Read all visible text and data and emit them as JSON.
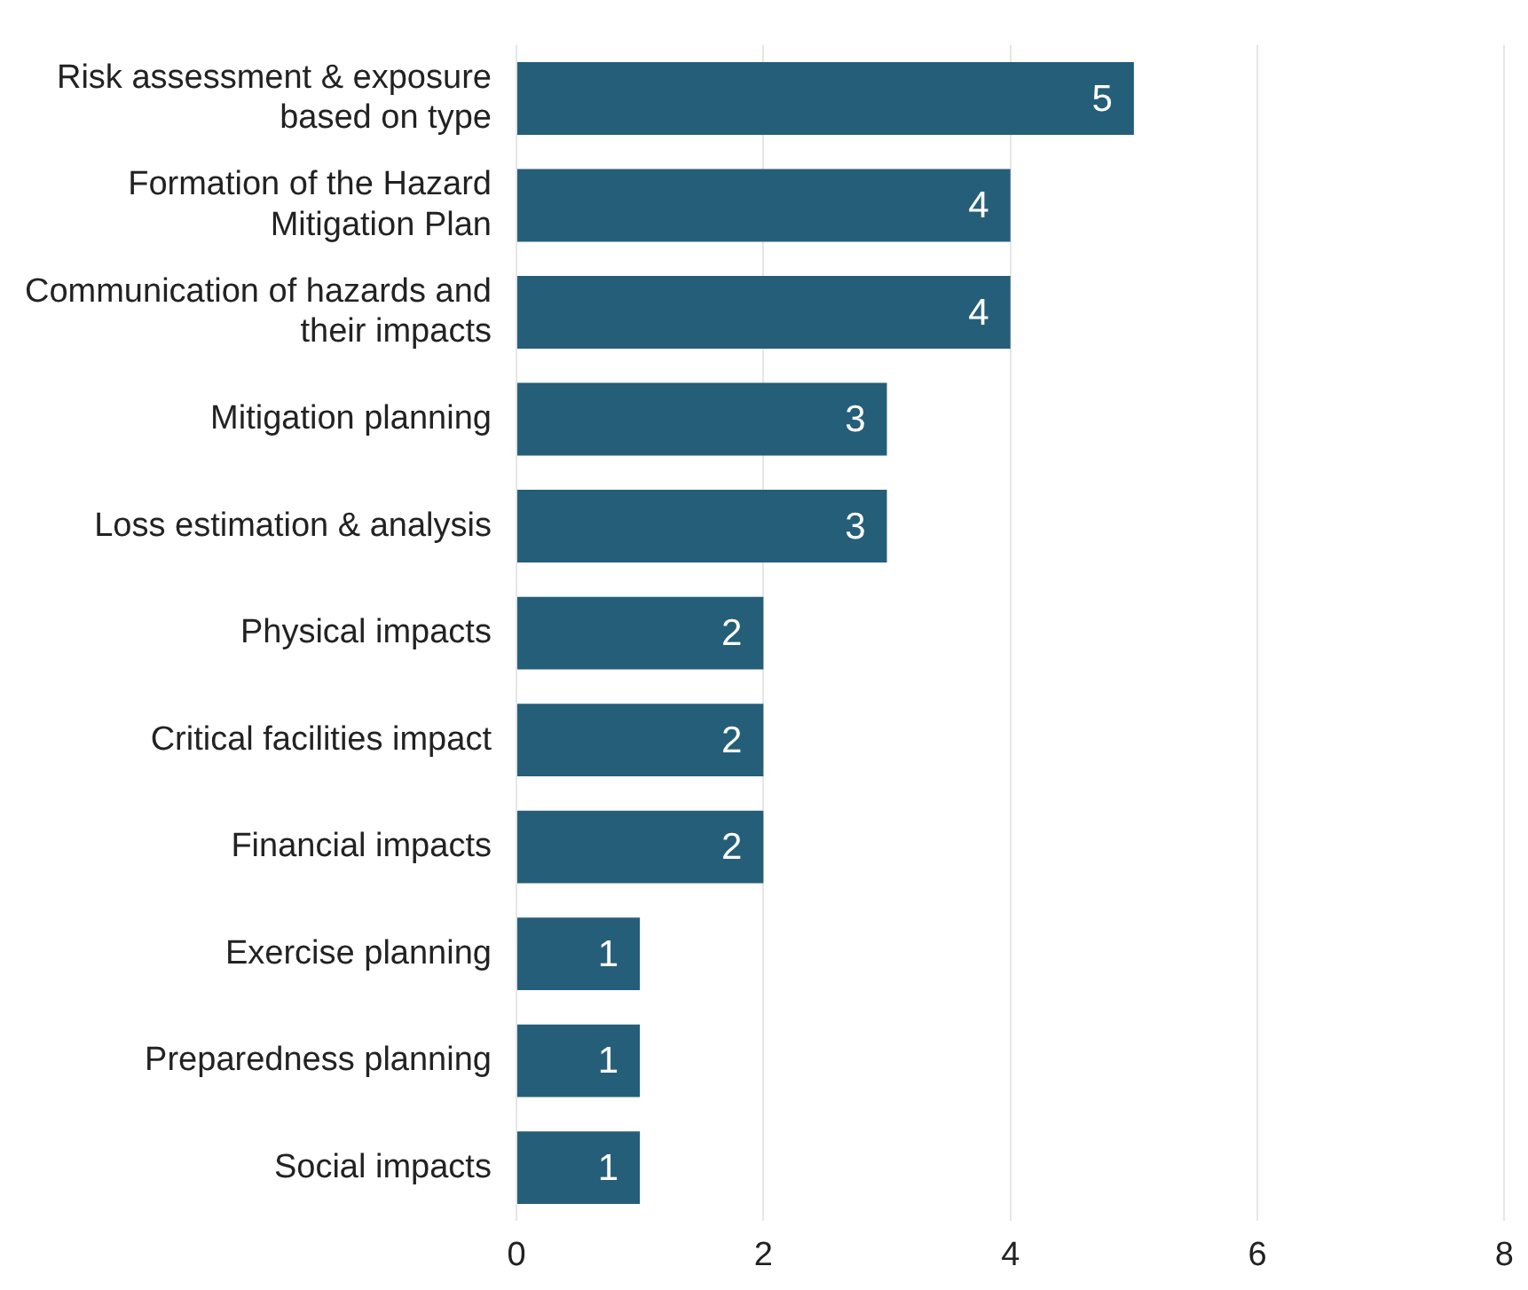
{
  "chart_data": {
    "type": "bar",
    "orientation": "horizontal",
    "categories": [
      "Risk assessment & exposure based on type",
      "Formation of the Hazard Mitigation Plan",
      "Communication of hazards and their impacts",
      "Mitigation planning",
      "Loss estimation & analysis",
      "Physical impacts",
      "Critical facilities impact",
      "Financial impacts",
      "Exercise planning",
      "Preparedness planning",
      "Social impacts"
    ],
    "values": [
      5,
      4,
      4,
      3,
      3,
      2,
      2,
      2,
      1,
      1,
      1
    ],
    "color": "#255e79",
    "xlim": [
      0,
      8
    ],
    "xticks": [
      0,
      2,
      4,
      6,
      8
    ],
    "grid": "x",
    "data_labels": true,
    "legend": false
  }
}
